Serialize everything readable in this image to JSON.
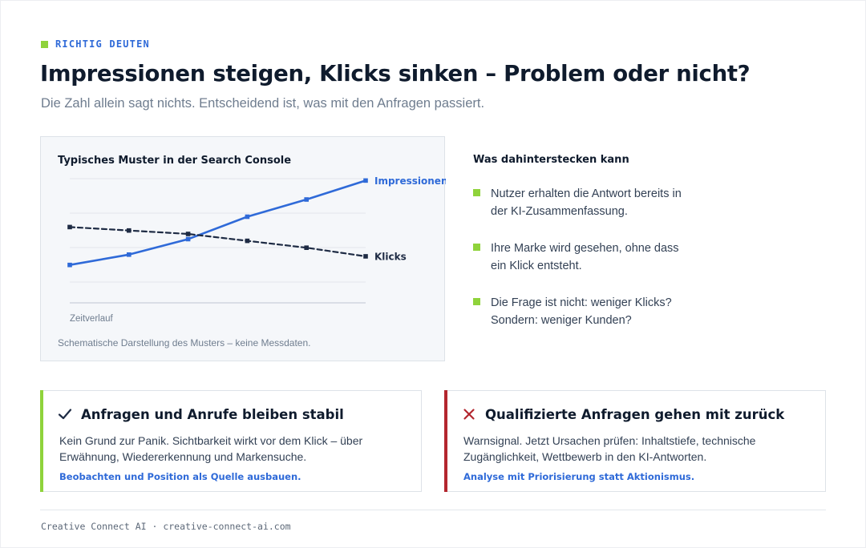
{
  "eyebrow": "RICHTIG DEUTEN",
  "title": "Impressionen steigen, Klicks sinken – Problem oder nicht?",
  "subtitle": "Die Zahl allein sagt nichts. Entscheidend ist, was mit den Anfragen passiert.",
  "chart_card": {
    "heading": "Typisches Muster in der Search Console",
    "caption": "Schematische Darstellung des Musters – keine Messdaten."
  },
  "chart_data": {
    "type": "line",
    "title": "Typisches Muster in der Search Console",
    "xlabel": "Zeitverlauf",
    "ylabel": "",
    "x": [
      1,
      2,
      3,
      4,
      5,
      6
    ],
    "ylim": [
      0,
      4
    ],
    "grid": true,
    "legend": "inline-right",
    "series": [
      {
        "name": "Impressionen",
        "values": [
          1.1,
          1.4,
          1.85,
          2.5,
          3.0,
          3.55
        ],
        "style": "solid",
        "color": "#2f6ad8"
      },
      {
        "name": "Klicks",
        "values": [
          2.2,
          2.1,
          2.0,
          1.8,
          1.6,
          1.35
        ],
        "style": "dashed",
        "color": "#1e2b44"
      }
    ]
  },
  "side": {
    "heading": "Was dahinterstecken kann",
    "bullets": [
      "Nutzer erhalten die Antwort bereits in der KI-Zusammenfassung.",
      "Ihre Marke wird gesehen, ohne dass ein Klick entsteht.",
      "Die Frage ist nicht: weniger Klicks? Sondern: weniger Kunden?"
    ]
  },
  "cards": [
    {
      "icon": "check-icon",
      "accent": "#8fd33b",
      "title": "Anfragen und Anrufe bleiben stabil",
      "body": "Kein Grund zur Panik. Sichtbarkeit wirkt vor dem Klick – über Erwähnung, Wiedererkennung und Markensuche.",
      "link": "Beobachten und Position als Quelle ausbauen."
    },
    {
      "icon": "cross-icon",
      "accent": "#b3262e",
      "title": "Qualifizierte Anfragen gehen mit zurück",
      "body": "Warnsignal. Jetzt Ursachen prüfen: Inhaltstiefe, technische Zugänglichkeit, Wettbewerb in den KI-Antworten.",
      "link": "Analyse mit Priorisierung statt Aktionismus."
    }
  ],
  "footer": "Creative Connect AI · creative-connect-ai.com"
}
